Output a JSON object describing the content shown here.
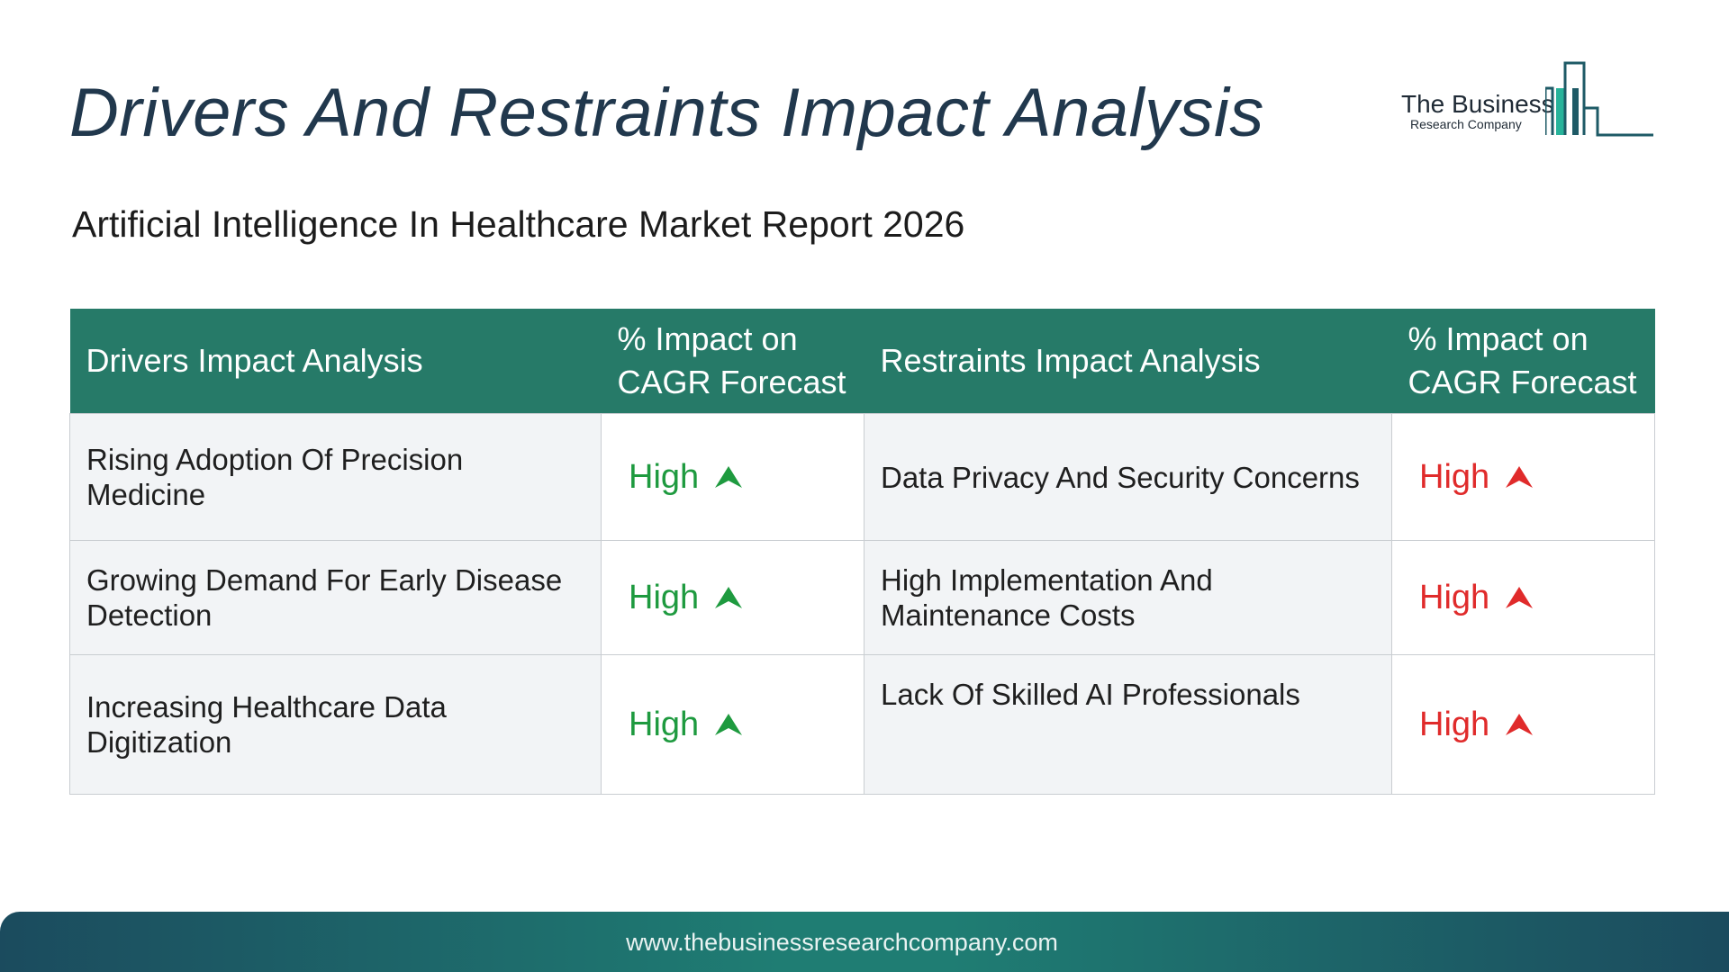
{
  "page": {
    "title": "Drivers And Restraints Impact Analysis",
    "subtitle": "Artificial Intelligence In Healthcare Market Report 2026"
  },
  "logo": {
    "line1": "The Business",
    "line2": "Research Company",
    "icon": "bar-building-icon"
  },
  "table": {
    "headers": {
      "drivers": "Drivers Impact Analysis",
      "drivers_impact": "% Impact on CAGR Forecast",
      "restraints": "Restraints Impact Analysis",
      "restraints_impact": "% Impact on CAGR Forecast"
    },
    "rows": [
      {
        "driver": "Rising Adoption Of Precision Medicine",
        "driver_impact": "High",
        "restraint": "Data Privacy And Security Concerns",
        "restraint_impact": "High"
      },
      {
        "driver": "Growing Demand For Early Disease Detection",
        "driver_impact": "High",
        "restraint": "High Implementation And Maintenance Costs",
        "restraint_impact": "High"
      },
      {
        "driver": "Increasing Healthcare Data Digitization",
        "driver_impact": "High",
        "restraint": "Lack Of Skilled AI Professionals",
        "restraint_impact": "High"
      }
    ]
  },
  "colors": {
    "header_bg": "#267a68",
    "driver_impact": "#1e9a3f",
    "restraint_impact": "#e02b2b",
    "title": "#21384d"
  },
  "footer": {
    "url": "www.thebusinessresearchcompany.com"
  }
}
